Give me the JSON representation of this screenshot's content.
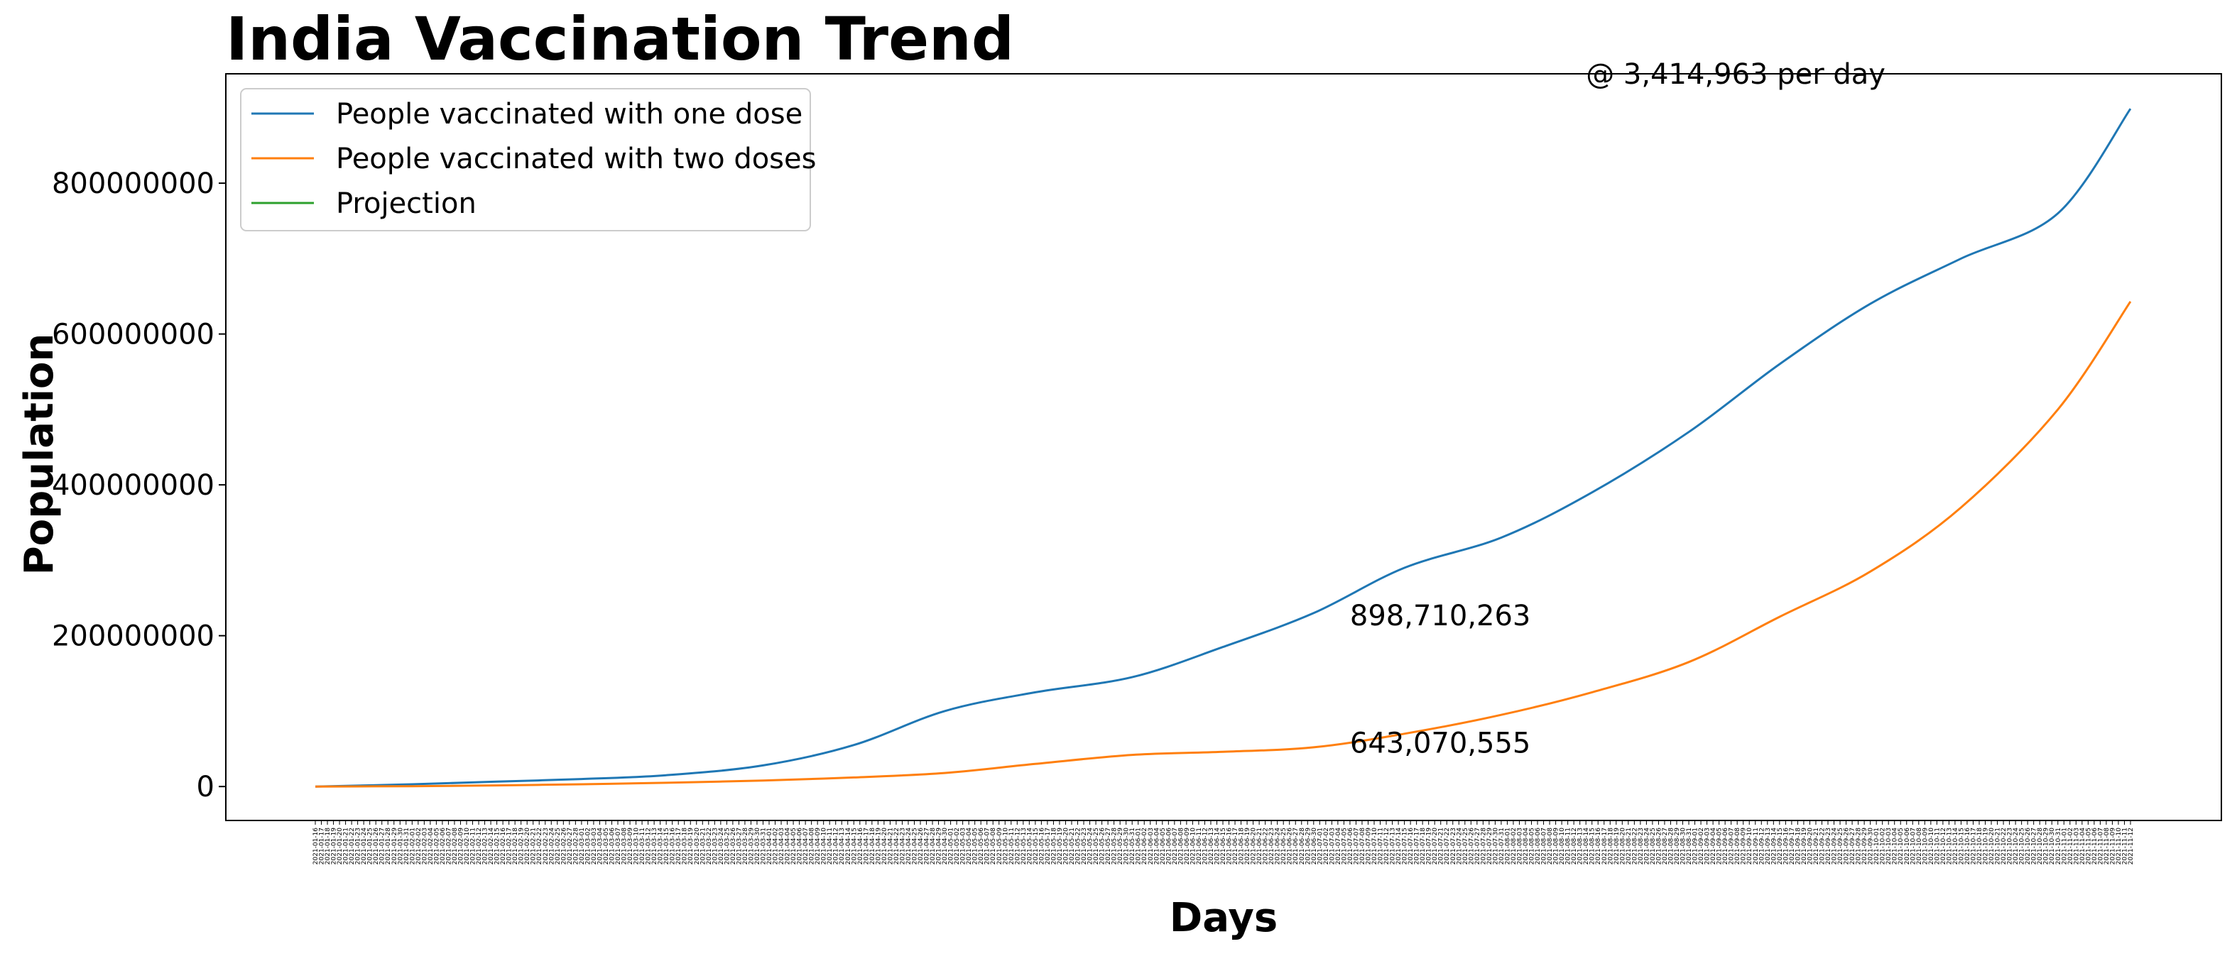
{
  "chart_data": {
    "type": "line",
    "title": "India Vaccination Trend",
    "xlabel": "Days",
    "ylabel": "Population",
    "ylim": [
      -45000000,
      945000000
    ],
    "yticks": [
      0,
      200000000,
      400000000,
      600000000,
      800000000
    ],
    "ytick_labels": [
      "0",
      "200000000",
      "400000000",
      "600000000",
      "800000000"
    ],
    "x_start": "2021-01-16",
    "x_end": "2021-11-12",
    "grid": false,
    "legend_placement": "top-left",
    "series": [
      {
        "name": "People vaccinated with one dose",
        "color": "#1f77b4",
        "points": [
          [
            "2021-01-16",
            0
          ],
          [
            "2021-02-01",
            3000000
          ],
          [
            "2021-02-15",
            6500000
          ],
          [
            "2021-03-01",
            10000000
          ],
          [
            "2021-03-15",
            15000000
          ],
          [
            "2021-03-31",
            28000000
          ],
          [
            "2021-04-15",
            55000000
          ],
          [
            "2021-04-30",
            100000000
          ],
          [
            "2021-05-15",
            125000000
          ],
          [
            "2021-05-31",
            145000000
          ],
          [
            "2021-06-15",
            185000000
          ],
          [
            "2021-06-30",
            230000000
          ],
          [
            "2021-07-15",
            290000000
          ],
          [
            "2021-07-31",
            330000000
          ],
          [
            "2021-08-15",
            390000000
          ],
          [
            "2021-08-31",
            470000000
          ],
          [
            "2021-09-15",
            560000000
          ],
          [
            "2021-09-30",
            640000000
          ],
          [
            "2021-10-15",
            700000000
          ],
          [
            "2021-10-31",
            760000000
          ],
          [
            "2021-11-12",
            898710263
          ]
        ]
      },
      {
        "name": "People vaccinated with two doses",
        "color": "#ff7f0e",
        "points": [
          [
            "2021-01-16",
            0
          ],
          [
            "2021-02-01",
            500000
          ],
          [
            "2021-02-15",
            1500000
          ],
          [
            "2021-03-01",
            3000000
          ],
          [
            "2021-03-15",
            5000000
          ],
          [
            "2021-03-31",
            8000000
          ],
          [
            "2021-04-15",
            12000000
          ],
          [
            "2021-04-30",
            18000000
          ],
          [
            "2021-05-15",
            30000000
          ],
          [
            "2021-05-31",
            42000000
          ],
          [
            "2021-06-15",
            46000000
          ],
          [
            "2021-06-30",
            52000000
          ],
          [
            "2021-07-15",
            70000000
          ],
          [
            "2021-07-31",
            95000000
          ],
          [
            "2021-08-15",
            125000000
          ],
          [
            "2021-08-31",
            165000000
          ],
          [
            "2021-09-15",
            225000000
          ],
          [
            "2021-09-30",
            285000000
          ],
          [
            "2021-10-15",
            370000000
          ],
          [
            "2021-10-31",
            500000000
          ],
          [
            "2021-11-12",
            643070555
          ]
        ]
      },
      {
        "name": "Projection",
        "color": "#2ca02c",
        "points": []
      }
    ],
    "annotations": [
      {
        "text": "@ 3,414,963 per day",
        "x": "2021-08-14",
        "y": 945000000
      },
      {
        "text": "898,710,263",
        "x": "2021-07-06",
        "y": 227000000
      },
      {
        "text": "643,070,555",
        "x": "2021-07-06",
        "y": 58000000
      }
    ]
  }
}
